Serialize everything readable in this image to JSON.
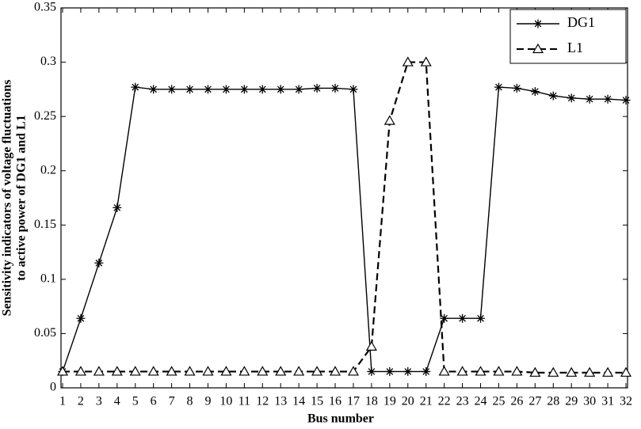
{
  "chart_data": {
    "type": "line",
    "xlabel": "Bus number",
    "ylabel": [
      "Sensitivity indicators of voltage fluctuations",
      "to active power of DG1 and L1"
    ],
    "x": [
      1,
      2,
      3,
      4,
      5,
      6,
      7,
      8,
      9,
      10,
      11,
      12,
      13,
      14,
      15,
      16,
      17,
      18,
      19,
      20,
      21,
      22,
      23,
      24,
      25,
      26,
      27,
      28,
      29,
      30,
      31,
      32
    ],
    "xlim": [
      1,
      32
    ],
    "xticks": [
      1,
      2,
      3,
      4,
      5,
      6,
      7,
      8,
      9,
      10,
      11,
      12,
      13,
      14,
      15,
      16,
      17,
      18,
      19,
      20,
      21,
      22,
      23,
      24,
      25,
      26,
      27,
      28,
      29,
      30,
      31,
      32
    ],
    "ylim": [
      0,
      0.35
    ],
    "yticks": [
      0,
      0.05,
      0.1,
      0.15,
      0.2,
      0.25,
      0.3,
      0.35
    ],
    "legend": "upper right",
    "series": [
      {
        "name": "DG1",
        "color": "#000000",
        "line_style": "solid",
        "marker": "star",
        "values": [
          0.015,
          0.064,
          0.115,
          0.166,
          0.277,
          0.275,
          0.275,
          0.275,
          0.275,
          0.275,
          0.275,
          0.275,
          0.275,
          0.275,
          0.276,
          0.276,
          0.275,
          0.015,
          0.015,
          0.015,
          0.015,
          0.064,
          0.064,
          0.064,
          0.277,
          0.276,
          0.273,
          0.269,
          0.267,
          0.266,
          0.266,
          0.265
        ]
      },
      {
        "name": "L1",
        "color": "#000000",
        "line_style": "dashed",
        "marker": "triangle",
        "values": [
          0.015,
          0.015,
          0.015,
          0.015,
          0.015,
          0.015,
          0.015,
          0.015,
          0.015,
          0.015,
          0.015,
          0.015,
          0.015,
          0.015,
          0.015,
          0.015,
          0.015,
          0.038,
          0.246,
          0.3,
          0.3,
          0.015,
          0.015,
          0.015,
          0.015,
          0.015,
          0.014,
          0.014,
          0.014,
          0.014,
          0.014,
          0.014
        ]
      }
    ]
  }
}
